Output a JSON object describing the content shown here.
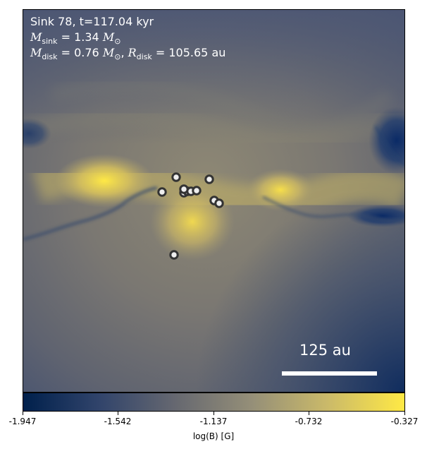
{
  "annotation": {
    "line1": "Sink 78, t=117.04 kyr",
    "msink_symbol": "M",
    "msink_sub": "sink",
    "msink_value": " = 1.34 ",
    "msink_unit": "M",
    "msink_unit_sub": "⊙",
    "mdisk_symbol": "M",
    "mdisk_sub": "disk",
    "mdisk_value": " = 0.76 ",
    "mdisk_unit": "M",
    "mdisk_unit_sub": "⊙",
    "rdisk_sep": ", ",
    "rdisk_symbol": "R",
    "rdisk_sub": "disk",
    "rdisk_value": " = 105.65 au"
  },
  "scale_bar": {
    "label": "125 au"
  },
  "colorbar": {
    "label": "log(B) [G]",
    "ticks": [
      "-1.947",
      "-1.542",
      "-1.137",
      "-0.732",
      "-0.327"
    ],
    "range": [
      -1.947,
      -0.327
    ],
    "colormap": "cividis",
    "colors": [
      "#00204c",
      "#31446b",
      "#666870",
      "#958f78",
      "#cbba69",
      "#ffe945"
    ]
  },
  "sink_markers": {
    "count": 12,
    "fill": "#eeeeee",
    "edge": "#333333"
  }
}
